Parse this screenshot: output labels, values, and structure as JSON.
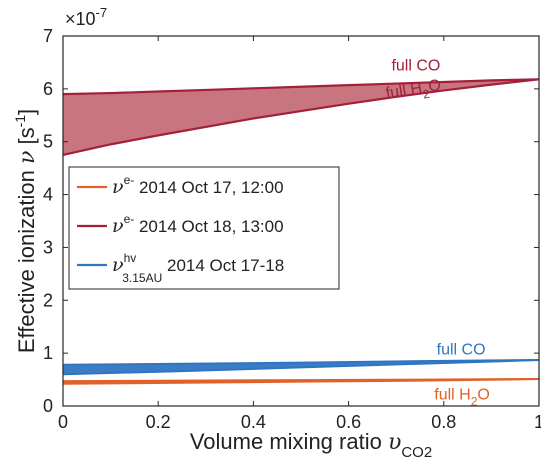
{
  "chart_data": {
    "type": "area",
    "xlabel_main": "Volume mixing ratio ",
    "xlabel_symbol": "υ",
    "xlabel_sub": "CO2",
    "ylabel_main": "Effective ionization ",
    "ylabel_symbol": "ν",
    "ylabel_unit_open": " [s",
    "ylabel_unit_exp": "-1",
    "ylabel_unit_close": "]",
    "exponent_base": "×10",
    "exponent_power": "-7",
    "xlim": [
      0,
      1
    ],
    "ylim": [
      0,
      7
    ],
    "x_ticks": [
      "0",
      "0.2",
      "0.4",
      "0.6",
      "0.8",
      "1"
    ],
    "y_ticks": [
      "0",
      "1",
      "2",
      "3",
      "4",
      "5",
      "6",
      "7"
    ],
    "grid": false,
    "legend_position": "middle-left",
    "colors": {
      "oct17": "#e0622a",
      "oct18": "#a3203a",
      "oct18_fill": "#c9757f",
      "hv": "#2f76c2",
      "hv_fill": "#2f76c2"
    },
    "series": [
      {
        "key": "oct17",
        "legend_symbol": "ν",
        "legend_sup": "e-",
        "legend_sub": "",
        "legend_text": "2014 Oct 17, 12:00",
        "x": [
          0,
          0.25,
          0.5,
          0.75,
          1
        ],
        "upper": [
          0.47,
          0.48,
          0.49,
          0.5,
          0.51
        ],
        "lower": [
          0.42,
          0.44,
          0.46,
          0.48,
          0.51
        ]
      },
      {
        "key": "oct18",
        "legend_symbol": "ν",
        "legend_sup": "e-",
        "legend_sub": "",
        "legend_text": "2014 Oct 18, 13:00",
        "x": [
          0,
          0.1,
          0.2,
          0.3,
          0.4,
          0.5,
          0.6,
          0.7,
          0.8,
          0.9,
          1
        ],
        "upper": [
          5.9,
          5.92,
          5.95,
          5.98,
          6.01,
          6.04,
          6.07,
          6.1,
          6.13,
          6.16,
          6.18
        ],
        "lower": [
          4.75,
          4.95,
          5.12,
          5.28,
          5.44,
          5.58,
          5.72,
          5.85,
          5.97,
          6.08,
          6.18
        ]
      },
      {
        "key": "hv",
        "legend_symbol": "ν",
        "legend_sup": "hv",
        "legend_sub": "3.15AU",
        "legend_text": "2014 Oct 17-18",
        "x": [
          0,
          0.25,
          0.5,
          0.75,
          1
        ],
        "upper": [
          0.78,
          0.8,
          0.82,
          0.85,
          0.87
        ],
        "lower": [
          0.6,
          0.66,
          0.73,
          0.8,
          0.87
        ]
      }
    ],
    "annotations": [
      {
        "key": "oct18",
        "main": "full CO",
        "sub": "",
        "tail": "",
        "x": 0.69,
        "y": 6.35,
        "color_key": "oct18"
      },
      {
        "key": "oct18",
        "main": "full H",
        "sub": "2",
        "tail": "O",
        "x": 0.68,
        "y": 5.82,
        "color_key": "oct18"
      },
      {
        "key": "hv",
        "main": "full CO",
        "sub": "",
        "tail": "",
        "x": 0.785,
        "y": 0.97,
        "color_key": "hv"
      },
      {
        "key": "oct17",
        "main": "full H",
        "sub": "2",
        "tail": "O",
        "x": 0.78,
        "y": 0.12,
        "color_key": "oct17"
      }
    ]
  }
}
